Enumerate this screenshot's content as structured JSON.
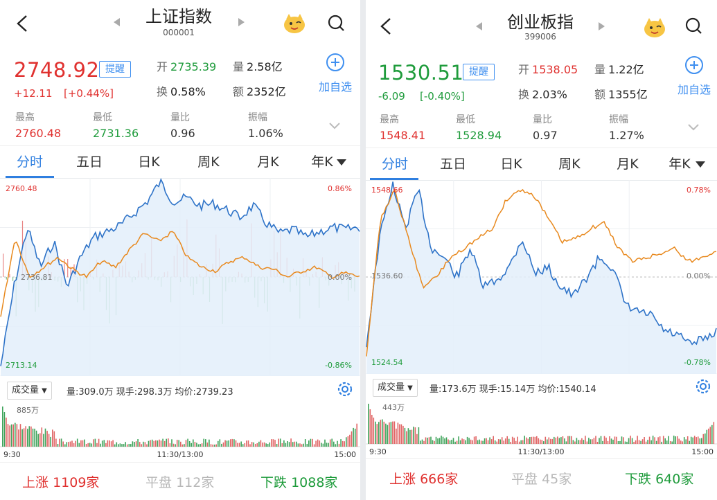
{
  "panels": [
    {
      "title": "上证指数",
      "code": "000001",
      "price": "2748.92",
      "remind": "提醒",
      "change": "+12.11",
      "change_pct": "[+0.44%]",
      "open_k": "开",
      "open_v": "2735.39",
      "vol_k": "量",
      "vol_v": "2.58亿",
      "turn_k": "换",
      "turn_v": "0.58%",
      "amt_k": "额",
      "amt_v": "2352亿",
      "add_label": "加自选",
      "high_k": "最高",
      "high_v": "2760.48",
      "low_k": "最低",
      "low_v": "2731.36",
      "ratio_k": "量比",
      "ratio_v": "0.96",
      "amp_k": "振幅",
      "amp_v": "1.06%",
      "tabs": [
        "分时",
        "五日",
        "日K",
        "周K",
        "月K",
        "年K"
      ],
      "chart": {
        "y_top": "2760.48",
        "y_mid": "2736.81",
        "y_bot": "2713.14",
        "p_top": "0.86%",
        "p_mid": "0.00%",
        "p_bot": "-0.86%"
      },
      "vol_dropdown": "成交量",
      "vol_info": "量:309.0万  现手:298.3万  均价:2739.23",
      "vol_max": "885万",
      "t_start": "9:30",
      "t_mid": "11:30/13:00",
      "t_end": "15:00",
      "up_k": "上涨",
      "up_v": "1109家",
      "flat_k": "平盘",
      "flat_v": "112家",
      "down_k": "下跌",
      "down_v": "1088家"
    },
    {
      "title": "创业板指",
      "code": "399006",
      "price": "1530.51",
      "remind": "提醒",
      "change": "-6.09",
      "change_pct": "[-0.40%]",
      "open_k": "开",
      "open_v": "1538.05",
      "vol_k": "量",
      "vol_v": "1.22亿",
      "turn_k": "换",
      "turn_v": "2.03%",
      "amt_k": "额",
      "amt_v": "1355亿",
      "add_label": "加自选",
      "high_k": "最高",
      "high_v": "1548.41",
      "low_k": "最低",
      "low_v": "1528.94",
      "ratio_k": "量比",
      "ratio_v": "0.97",
      "amp_k": "振幅",
      "amp_v": "1.27%",
      "tabs": [
        "分时",
        "五日",
        "日K",
        "周K",
        "月K",
        "年K"
      ],
      "chart": {
        "y_top": "1548.66",
        "y_mid": "1536.60",
        "y_bot": "1524.54",
        "p_top": "0.78%",
        "p_mid": "0.00%",
        "p_bot": "-0.78%"
      },
      "vol_dropdown": "成交量",
      "vol_info": "量:173.6万  现手:15.14万  均价:1540.14",
      "vol_max": "443万",
      "t_start": "9:30",
      "t_mid": "11:30/13:00",
      "t_end": "15:00",
      "up_k": "上涨",
      "up_v": "666家",
      "flat_k": "平盘",
      "flat_v": "45家",
      "down_k": "下跌",
      "down_v": "640家"
    }
  ],
  "colors": {
    "up": "#e0312f",
    "down": "#1e9b3b",
    "accent": "#2f7fe0",
    "price_line": "#2e73c8",
    "avg_line": "#e8891e",
    "area_fill": "#e3eefa"
  },
  "icons": [
    "back-icon",
    "prev-arrow-icon",
    "next-arrow-icon",
    "mascot-icon",
    "search-icon",
    "add-circle-icon",
    "chevron-down-icon",
    "dropdown-caret-icon",
    "gear-icon"
  ]
}
